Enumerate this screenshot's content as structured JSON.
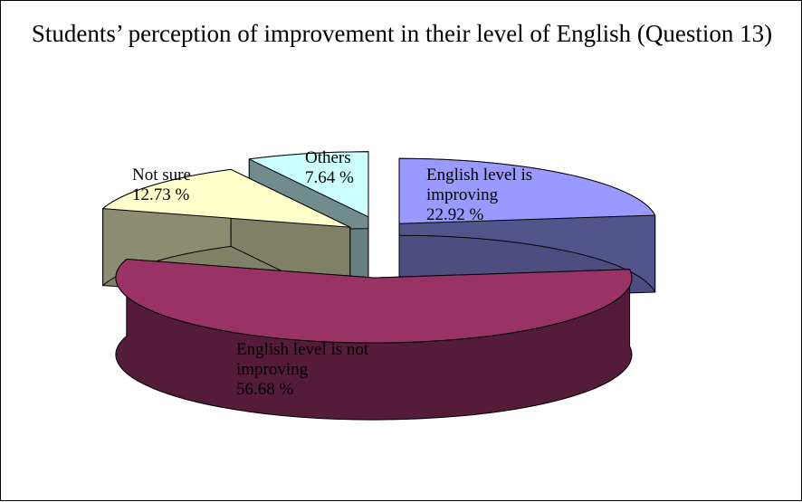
{
  "chart_data": {
    "type": "pie3d",
    "title": "Students’ perception of improvement in their level of English (Question 13)",
    "categories": [
      "English level is improving",
      "English level is not improving",
      "Not sure",
      "Others"
    ],
    "values": [
      22.92,
      56.68,
      12.73,
      7.64
    ],
    "value_labels": [
      "22.92 %",
      "56.68 %",
      "12.73 %",
      "7.64 %"
    ],
    "colors": [
      "#9999ff",
      "#993366",
      "#ffffcc",
      "#ccffff"
    ]
  }
}
